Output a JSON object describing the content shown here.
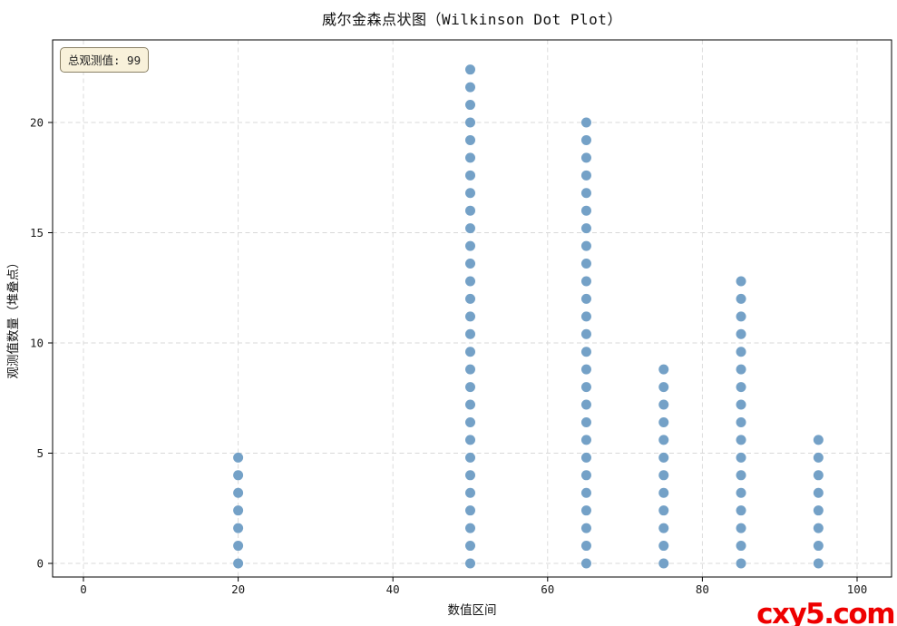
{
  "page": {
    "watermark": "cxy5.com",
    "watermark_color": "#ee0000"
  },
  "chart_data": {
    "type": "scatter",
    "variant": "wilkinson-dot-plot",
    "title": "威尔金森点状图（Wilkinson Dot Plot）",
    "xlabel": "数值区间",
    "ylabel": "观测值数量（堆叠点）",
    "annotation": "总观测值: 99",
    "total_observations": 99,
    "dot_stack_spacing": 0.8,
    "dot_color": "#74a1c7",
    "grid": true,
    "grid_color": "#d8d8d8",
    "axis_color": "#000000",
    "tick_label_color": "#1a1a1a",
    "x_ticks": [
      0,
      20,
      40,
      60,
      80,
      100
    ],
    "y_ticks": [
      0,
      5,
      10,
      15,
      20
    ],
    "xlim": [
      -4,
      104.5
    ],
    "ylim": [
      -1.3,
      23.8
    ],
    "stacks": [
      {
        "x": 20,
        "count": 7,
        "max_y": 4.8
      },
      {
        "x": 50,
        "count": 29,
        "max_y": 22.4
      },
      {
        "x": 65,
        "count": 26,
        "max_y": 20.0
      },
      {
        "x": 75,
        "count": 12,
        "max_y": 8.8
      },
      {
        "x": 85,
        "count": 17,
        "max_y": 12.8
      },
      {
        "x": 95,
        "count": 8,
        "max_y": 5.6
      }
    ]
  }
}
